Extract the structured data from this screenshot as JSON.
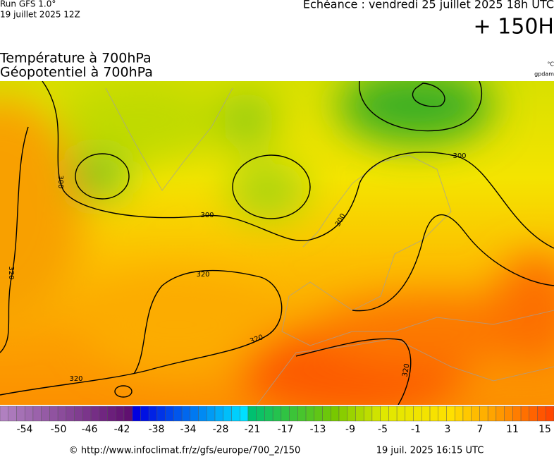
{
  "header": {
    "run": "Run GFS 1.0°",
    "run_date": "19 juillet 2025 12Z",
    "valid": "Echéance : vendredi 25 juillet 2025 18h UTC",
    "lead": "+ 150H",
    "title_1": "Température à 700hPa",
    "title_2": "Géopotentiel à 700hPa",
    "unit_1": "°C",
    "unit_2": "gpdam"
  },
  "map": {
    "contour_labels": [
      300,
      300,
      300,
      300,
      320,
      320,
      320,
      320,
      320
    ]
  },
  "legend": {
    "labels": [
      -54,
      -50,
      -46,
      -42,
      -38,
      -34,
      -28,
      -21,
      -17,
      -13,
      -9,
      -5,
      -1,
      3,
      7,
      11,
      15
    ]
  },
  "footer": {
    "source": "© http://www.infoclimat.fr/z/gfs/europe/700_2/150",
    "generated": "19 juil. 2025 16:15 UTC"
  }
}
